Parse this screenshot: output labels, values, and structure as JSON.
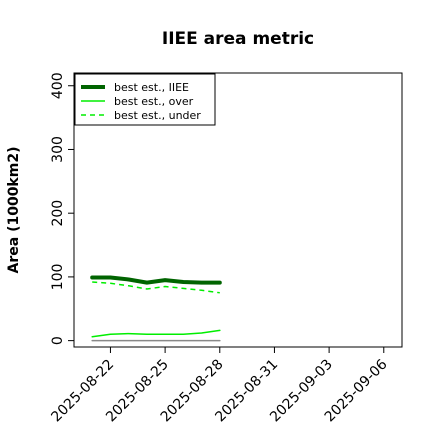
{
  "chart_data": {
    "type": "line",
    "title": "IIEE area metric",
    "xlabel": "",
    "ylabel": "Area (1000km2)",
    "ylim": [
      -10,
      420
    ],
    "yticks": [
      0,
      100,
      200,
      300,
      400
    ],
    "xlim": [
      "2025-08-20",
      "2025-09-07"
    ],
    "xticks": [
      "2025-08-22",
      "2025-08-25",
      "2025-08-28",
      "2025-08-31",
      "2025-09-03",
      "2025-09-06"
    ],
    "grid": false,
    "legend_position": "top-left",
    "x": [
      "2025-08-21",
      "2025-08-22",
      "2025-08-23",
      "2025-08-24",
      "2025-08-25",
      "2025-08-26",
      "2025-08-27",
      "2025-08-28"
    ],
    "series": [
      {
        "name": "best est., IIEE",
        "color": "#006400",
        "style": "solid",
        "width": 4,
        "values": [
          99,
          99,
          96,
          91,
          95,
          92,
          91,
          91
        ]
      },
      {
        "name": "best est., over",
        "color": "#00ee00",
        "style": "solid",
        "width": 1.5,
        "values": [
          6,
          10,
          11,
          10,
          10,
          10,
          12,
          16
        ]
      },
      {
        "name": "best est., under",
        "color": "#00ee00",
        "style": "dashed",
        "width": 1.5,
        "values": [
          92,
          90,
          86,
          81,
          85,
          82,
          79,
          75
        ]
      },
      {
        "name": "",
        "color": "#888888",
        "style": "solid",
        "width": 1.5,
        "values": [
          0,
          0,
          0,
          0,
          0,
          0,
          0,
          0
        ]
      }
    ]
  }
}
